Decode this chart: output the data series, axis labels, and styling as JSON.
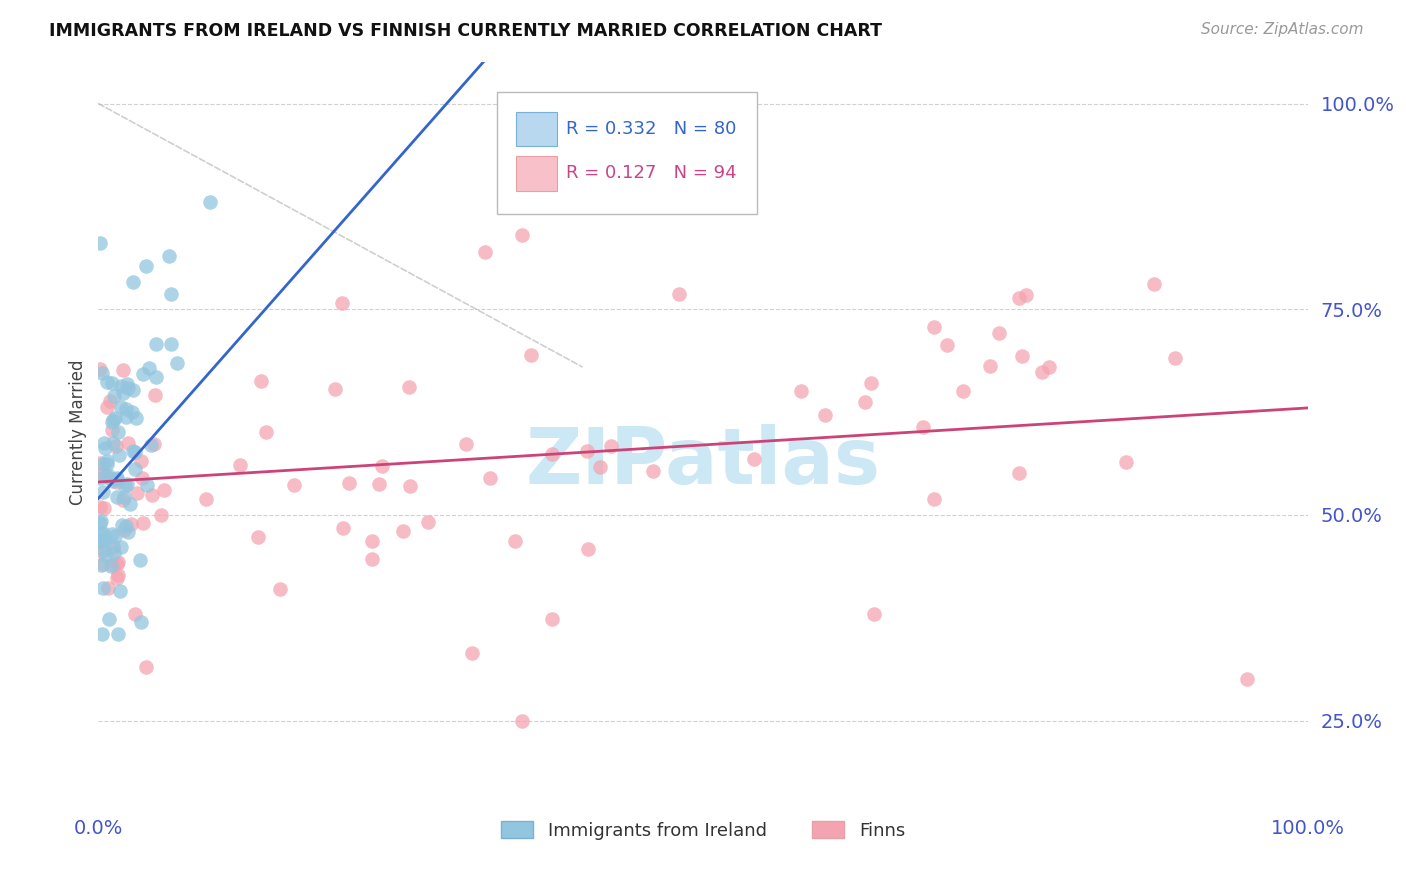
{
  "title": "IMMIGRANTS FROM IRELAND VS FINNISH CURRENTLY MARRIED CORRELATION CHART",
  "source_text": "Source: ZipAtlas.com",
  "ylabel": "Currently Married",
  "series1_label": "Immigrants from Ireland",
  "series1_R": 0.332,
  "series1_N": 80,
  "series1_color": "#92c5de",
  "series2_label": "Finns",
  "series2_R": 0.127,
  "series2_N": 94,
  "series2_color": "#f4a4b0",
  "trend1_color": "#3366cc",
  "trend2_color": "#cc4477",
  "diag_line_color": "#bbbbbb",
  "background_color": "#ffffff",
  "grid_color": "#cccccc",
  "watermark_color": "#cce8f4",
  "legend_box_color1": "#b8d8f0",
  "legend_box_color2": "#f8c0c8",
  "axis_tick_color": "#4455cc",
  "y_ticks": [
    0.25,
    0.5,
    0.75,
    1.0
  ],
  "x_lim": [
    0.0,
    1.0
  ],
  "y_lim": [
    0.15,
    1.05
  ]
}
